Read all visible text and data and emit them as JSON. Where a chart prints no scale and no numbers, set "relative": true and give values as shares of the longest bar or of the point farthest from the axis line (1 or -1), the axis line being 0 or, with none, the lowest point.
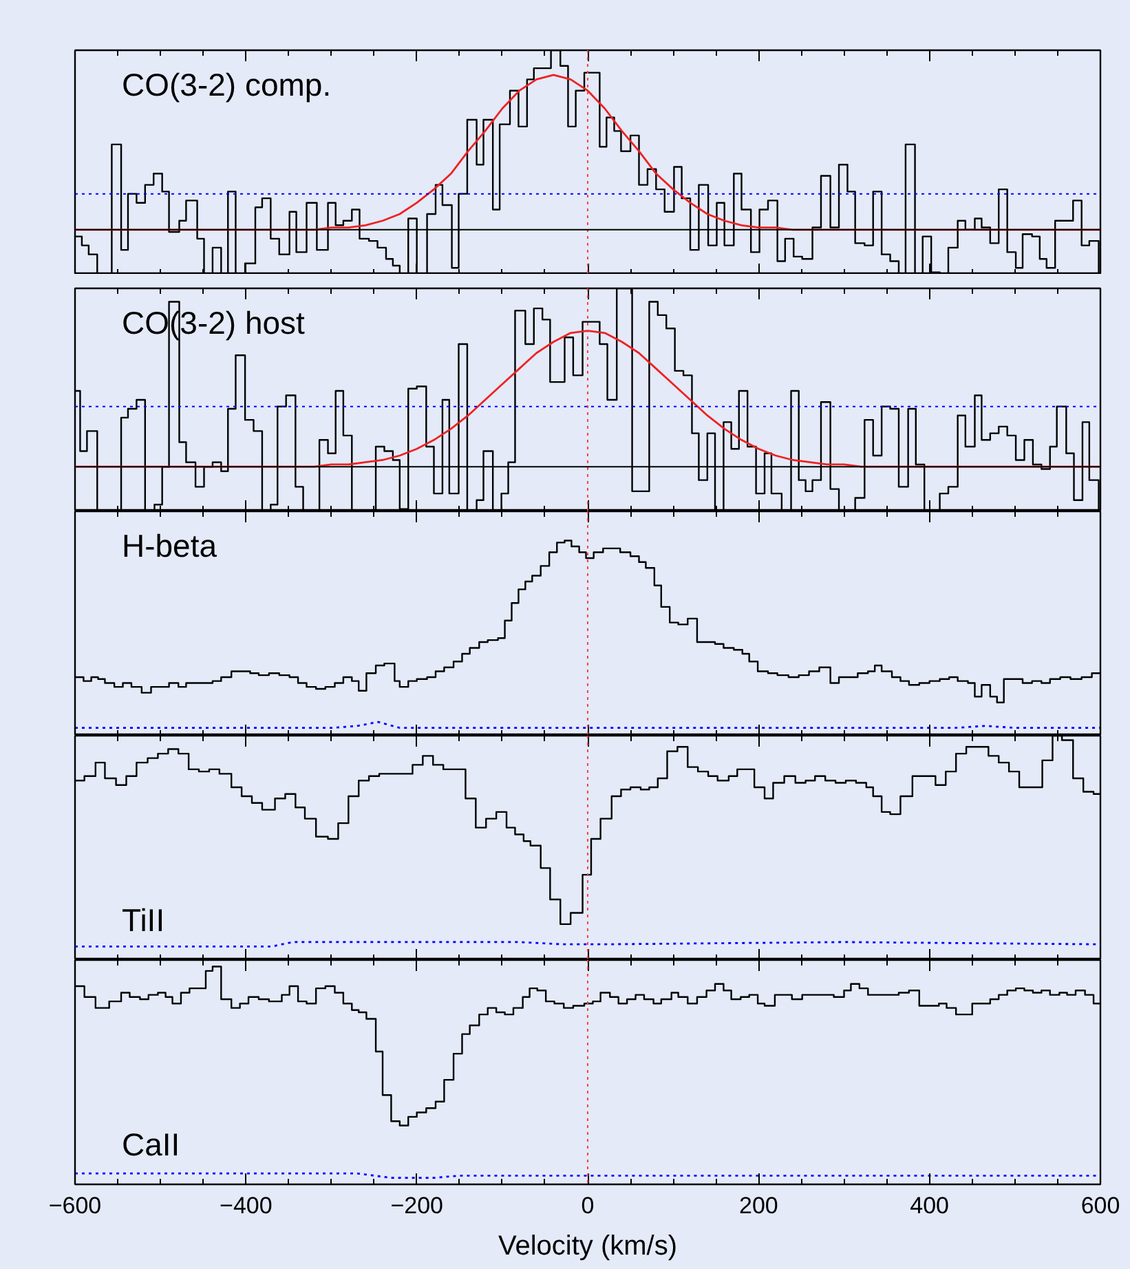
{
  "chart_data": [
    {
      "type": "step",
      "title": "CO(3-2) comp.",
      "relative": true,
      "xlim": [
        -600,
        600
      ],
      "xticks": [
        -600,
        {
          "value": -550,
          "label": null
        },
        {
          "value": -500,
          "label": null
        },
        {
          "value": -450,
          "label": null
        },
        -400,
        {
          "value": -350,
          "label": null
        },
        {
          "value": -300,
          "label": null
        },
        {
          "value": -250,
          "label": null
        },
        -200,
        {
          "value": -150,
          "label": null
        },
        {
          "value": -100,
          "label": null
        },
        {
          "value": -50,
          "label": null
        },
        0,
        {
          "value": 50,
          "label": null
        },
        {
          "value": 100,
          "label": null
        },
        {
          "value": 150,
          "label": null
        },
        200,
        {
          "value": 250,
          "label": null
        },
        {
          "value": 300,
          "label": null
        },
        {
          "value": 350,
          "label": null
        },
        400,
        {
          "value": 450,
          "label": null
        },
        {
          "value": 500,
          "label": null
        },
        {
          "value": 550,
          "label": null
        },
        600
      ],
      "tick_labels": false,
      "series": [
        {
          "color": "#000000",
          "x": [
            -600,
            -592,
            -584,
            -574,
            -557,
            -546,
            -538,
            -528,
            -518,
            -508,
            -498,
            -490,
            -478,
            -470,
            -457,
            -449,
            -439,
            -429,
            -421,
            -412,
            -401,
            -389,
            -381,
            -371,
            -361,
            -349,
            -341,
            -329,
            -317,
            -304,
            -295,
            -286,
            -276,
            -267,
            -256,
            -246,
            -236,
            -228,
            -220,
            -210,
            -200,
            -188,
            -178,
            -170,
            -159,
            -151,
            -141,
            -130,
            -122,
            -111,
            -103,
            -91,
            -81,
            -71,
            -63,
            -53,
            -43,
            -32,
            -23,
            -14,
            -4,
            14,
            22,
            31,
            39,
            50,
            60,
            70,
            80,
            90,
            101,
            110,
            120,
            130,
            141,
            151,
            160,
            171,
            180,
            191,
            201,
            211,
            222,
            231,
            241,
            251,
            263,
            273,
            284,
            294,
            304,
            313,
            324,
            334,
            344,
            354,
            364,
            372,
            383,
            392,
            402,
            412,
            422,
            433,
            442,
            453,
            461,
            471,
            481,
            491,
            501,
            509,
            520,
            529,
            537,
            547,
            557,
            568,
            578,
            587,
            598,
            600
          ],
          "values": [
            0.17,
            0.13,
            0.09,
            0,
            0.58,
            0.11,
            0.36,
            0.32,
            0.4,
            0.45,
            0.37,
            0.19,
            0.24,
            0.33,
            0.16,
            0,
            0.12,
            0,
            0.37,
            0,
            0.05,
            0.3,
            0.34,
            0.16,
            0.09,
            0.28,
            0.1,
            0.32,
            0.11,
            0.32,
            0.22,
            0.24,
            0.29,
            0.16,
            0.15,
            0.12,
            0.07,
            0.04,
            0,
            0.25,
            0,
            0.27,
            0.4,
            0.31,
            0.03,
            0.36,
            0.69,
            0.49,
            0.69,
            0.29,
            0.67,
            0.82,
            0.66,
            0.87,
            0.92,
            0.92,
            1.0,
            0.93,
            0.66,
            0.82,
            0.9,
            0.57,
            0.7,
            0.64,
            0.55,
            0.62,
            0.4,
            0.47,
            0.38,
            0.28,
            0.48,
            0.34,
            0.11,
            0.4,
            0.13,
            0.32,
            0.13,
            0.45,
            0.29,
            0.1,
            0.29,
            0.33,
            0.06,
            0.16,
            0.08,
            0.07,
            0.21,
            0.44,
            0.21,
            0.49,
            0.37,
            0.14,
            0.13,
            0.37,
            0.09,
            0.06,
            0,
            0.58,
            0,
            0.17,
            0.01,
            0,
            0.12,
            0.24,
            0.2,
            0.25,
            0.21,
            0.14,
            0.38,
            0.1,
            0.03,
            0.18,
            0.17,
            0.07,
            0.03,
            0.24,
            0.24,
            0.33,
            0.13,
            0.15,
            0,
            0
          ]
        },
        {
          "type": "line",
          "color": "#ee2222",
          "x": [
            -600,
            -320,
            -300,
            -280,
            -260,
            -240,
            -220,
            -200,
            -180,
            -160,
            -140,
            -120,
            -100,
            -80,
            -60,
            -40,
            -20,
            0,
            20,
            40,
            60,
            80,
            100,
            120,
            140,
            160,
            180,
            200,
            220,
            240,
            600
          ],
          "values": [
            0.2,
            0.2,
            0.21,
            0.21,
            0.22,
            0.24,
            0.27,
            0.32,
            0.38,
            0.45,
            0.55,
            0.64,
            0.74,
            0.82,
            0.87,
            0.89,
            0.87,
            0.82,
            0.74,
            0.64,
            0.55,
            0.45,
            0.38,
            0.32,
            0.27,
            0.24,
            0.22,
            0.21,
            0.21,
            0.2,
            0.2
          ]
        }
      ],
      "ref_lines": [
        {
          "axis": "x",
          "value": 0,
          "color": "#ff4040",
          "line_style": "dotted"
        },
        {
          "axis": "y",
          "value": 0.2,
          "color": "#000000",
          "line_style": "solid"
        },
        {
          "axis": "y",
          "value": 0.36,
          "color": "#0000ff",
          "line_style": "dotted"
        }
      ]
    },
    {
      "type": "step",
      "title": "CO(3-2) host",
      "relative": true,
      "xlim": [
        -600,
        600
      ],
      "xticks": [
        -600,
        {
          "value": -550,
          "label": null
        },
        {
          "value": -500,
          "label": null
        },
        {
          "value": -450,
          "label": null
        },
        -400,
        {
          "value": -350,
          "label": null
        },
        {
          "value": -300,
          "label": null
        },
        {
          "value": -250,
          "label": null
        },
        -200,
        {
          "value": -150,
          "label": null
        },
        {
          "value": -100,
          "label": null
        },
        {
          "value": -50,
          "label": null
        },
        0,
        {
          "value": 50,
          "label": null
        },
        {
          "value": 100,
          "label": null
        },
        {
          "value": 150,
          "label": null
        },
        200,
        {
          "value": 250,
          "label": null
        },
        {
          "value": 300,
          "label": null
        },
        {
          "value": 350,
          "label": null
        },
        400,
        {
          "value": 450,
          "label": null
        },
        {
          "value": 500,
          "label": null
        },
        {
          "value": 550,
          "label": null
        },
        600
      ],
      "tick_labels": false,
      "series": [
        {
          "color": "#000000",
          "x": [
            -600,
            -594,
            -586,
            -574,
            -546,
            -538,
            -528,
            -518,
            -507,
            -498,
            -490,
            -478,
            -470,
            -459,
            -449,
            -439,
            -429,
            -421,
            -412,
            -401,
            -391,
            -381,
            -371,
            -363,
            -353,
            -342,
            -333,
            -314,
            -304,
            -295,
            -286,
            -276,
            -248,
            -238,
            -228,
            -220,
            -210,
            -200,
            -189,
            -180,
            -170,
            -162,
            -151,
            -141,
            -130,
            -122,
            -111,
            -101,
            -93,
            -85,
            -73,
            -63,
            -53,
            -44,
            -27,
            -17,
            -6,
            14,
            23,
            34,
            52,
            62,
            72,
            82,
            92,
            102,
            112,
            122,
            130,
            140,
            149,
            159,
            168,
            177,
            187,
            197,
            207,
            215,
            227,
            238,
            247,
            255,
            263,
            273,
            284,
            294,
            313,
            324,
            334,
            344,
            354,
            364,
            375,
            384,
            394,
            412,
            422,
            433,
            442,
            453,
            461,
            471,
            481,
            491,
            501,
            511,
            521,
            531,
            541,
            549,
            560,
            569,
            579,
            587,
            598,
            600
          ],
          "values": [
            0.54,
            0.27,
            0.36,
            0,
            0.42,
            0.46,
            0.5,
            0,
            0.03,
            0.2,
            0.94,
            0.31,
            0.22,
            0.11,
            0.2,
            0.22,
            0.18,
            0.46,
            0.7,
            0.41,
            0.36,
            0,
            0.03,
            0.47,
            0.52,
            0.11,
            0,
            0.32,
            0.26,
            0.54,
            0.34,
            0,
            0.29,
            0.27,
            0.23,
            0.01,
            0.55,
            0.56,
            0.29,
            0.08,
            0.5,
            0.08,
            0.75,
            0,
            0.05,
            0.27,
            0,
            0.08,
            0.22,
            0.9,
            0.75,
            0.91,
            0.86,
            0.58,
            0.78,
            0.61,
            0.85,
            0.75,
            0.5,
            1.0,
            0.09,
            0.09,
            0.94,
            0.88,
            0.82,
            0.63,
            0.61,
            0.35,
            0.14,
            0.35,
            0,
            0.4,
            0.28,
            0.54,
            0.29,
            0.08,
            0.26,
            0.08,
            0,
            0.54,
            0.14,
            0.09,
            0.14,
            0.49,
            0.1,
            0,
            0.06,
            0.41,
            0.25,
            0.47,
            0.46,
            0.11,
            0.46,
            0.21,
            0,
            0.08,
            0.11,
            0.43,
            0.29,
            0.52,
            0.32,
            0.35,
            0.38,
            0.34,
            0.23,
            0.32,
            0.21,
            0.19,
            0.29,
            0.47,
            0.26,
            0.05,
            0.4,
            0.14,
            0,
            0
          ]
        },
        {
          "type": "line",
          "color": "#ee2222",
          "x": [
            -600,
            -320,
            -300,
            -280,
            -260,
            -240,
            -220,
            -200,
            -180,
            -160,
            -140,
            -120,
            -100,
            -80,
            -60,
            -40,
            -20,
            0,
            20,
            40,
            60,
            80,
            100,
            120,
            140,
            160,
            180,
            200,
            220,
            240,
            260,
            280,
            300,
            320,
            600
          ],
          "values": [
            0.2,
            0.2,
            0.21,
            0.21,
            0.22,
            0.23,
            0.25,
            0.28,
            0.32,
            0.37,
            0.43,
            0.5,
            0.57,
            0.64,
            0.71,
            0.76,
            0.8,
            0.81,
            0.8,
            0.76,
            0.71,
            0.64,
            0.57,
            0.5,
            0.43,
            0.37,
            0.32,
            0.28,
            0.25,
            0.23,
            0.22,
            0.21,
            0.21,
            0.2,
            0.2
          ]
        }
      ],
      "ref_lines": [
        {
          "axis": "x",
          "value": 0,
          "color": "#ff4040",
          "line_style": "dotted"
        },
        {
          "axis": "y",
          "value": 0.2,
          "color": "#000000",
          "line_style": "solid"
        },
        {
          "axis": "y",
          "value": 0.47,
          "color": "#0000ff",
          "line_style": "dotted"
        }
      ]
    },
    {
      "type": "step",
      "title": "H-beta",
      "relative": true,
      "xlim": [
        -600,
        600
      ],
      "xticks": [
        -600,
        {
          "value": -550,
          "label": null
        },
        {
          "value": -500,
          "label": null
        },
        {
          "value": -450,
          "label": null
        },
        -400,
        {
          "value": -350,
          "label": null
        },
        {
          "value": -300,
          "label": null
        },
        {
          "value": -250,
          "label": null
        },
        -200,
        {
          "value": -150,
          "label": null
        },
        {
          "value": -100,
          "label": null
        },
        {
          "value": -50,
          "label": null
        },
        0,
        {
          "value": 50,
          "label": null
        },
        {
          "value": 100,
          "label": null
        },
        {
          "value": 150,
          "label": null
        },
        200,
        {
          "value": 250,
          "label": null
        },
        {
          "value": 300,
          "label": null
        },
        {
          "value": 350,
          "label": null
        },
        400,
        {
          "value": 450,
          "label": null
        },
        {
          "value": 500,
          "label": null
        },
        {
          "value": 550,
          "label": null
        },
        600
      ],
      "tick_labels": false,
      "series": [
        {
          "color": "#000000",
          "x": [
            -600,
            -590,
            -581,
            -573,
            -565,
            -554,
            -544,
            -534,
            -522,
            -511,
            -502,
            -490,
            -479,
            -470,
            -460,
            -449,
            -439,
            -429,
            -417,
            -407,
            -395,
            -385,
            -373,
            -361,
            -349,
            -339,
            -329,
            -318,
            -307,
            -296,
            -286,
            -276,
            -268,
            -259,
            -248,
            -238,
            -226,
            -220,
            -210,
            -200,
            -188,
            -178,
            -168,
            -157,
            -147,
            -138,
            -127,
            -117,
            -105,
            -97,
            -89,
            -81,
            -73,
            -65,
            -55,
            -45,
            -36,
            -27,
            -19,
            -10,
            -2,
            7,
            18,
            28,
            38,
            50,
            60,
            68,
            78,
            86,
            96,
            106,
            117,
            128,
            139,
            149,
            159,
            171,
            181,
            189,
            199,
            211,
            222,
            235,
            247,
            259,
            271,
            284,
            294,
            304,
            316,
            328,
            336,
            344,
            356,
            366,
            376,
            388,
            400,
            412,
            423,
            433,
            445,
            453,
            461,
            471,
            479,
            487,
            497,
            509,
            520,
            531,
            541,
            553,
            565,
            578,
            590,
            600
          ],
          "values": [
            0.3,
            0.28,
            0.3,
            0.29,
            0.27,
            0.25,
            0.27,
            0.25,
            0.22,
            0.25,
            0.25,
            0.27,
            0.25,
            0.27,
            0.27,
            0.27,
            0.28,
            0.3,
            0.33,
            0.33,
            0.32,
            0.31,
            0.32,
            0.31,
            0.3,
            0.27,
            0.25,
            0.24,
            0.25,
            0.27,
            0.3,
            0.28,
            0.23,
            0.32,
            0.36,
            0.37,
            0.28,
            0.25,
            0.28,
            0.29,
            0.3,
            0.33,
            0.35,
            0.38,
            0.42,
            0.45,
            0.48,
            0.49,
            0.5,
            0.59,
            0.68,
            0.75,
            0.79,
            0.82,
            0.87,
            0.94,
            0.99,
            1.0,
            0.97,
            0.94,
            0.91,
            0.94,
            0.96,
            0.96,
            0.94,
            0.92,
            0.89,
            0.86,
            0.77,
            0.66,
            0.58,
            0.57,
            0.6,
            0.48,
            0.48,
            0.47,
            0.45,
            0.44,
            0.42,
            0.38,
            0.33,
            0.32,
            0.31,
            0.3,
            0.31,
            0.33,
            0.35,
            0.27,
            0.3,
            0.3,
            0.32,
            0.33,
            0.36,
            0.33,
            0.3,
            0.28,
            0.26,
            0.27,
            0.28,
            0.29,
            0.3,
            0.28,
            0.27,
            0.2,
            0.26,
            0.2,
            0.17,
            0.29,
            0.29,
            0.27,
            0.28,
            0.27,
            0.29,
            0.3,
            0.29,
            0.3,
            0.32,
            0.32
          ]
        },
        {
          "type": "line",
          "color": "#0000ff",
          "line_style": "dotted",
          "x": [
            -600,
            -300,
            -270,
            -245,
            -220,
            430,
            465,
            500,
            600
          ],
          "values": [
            0.04,
            0.04,
            0.05,
            0.07,
            0.04,
            0.04,
            0.05,
            0.04,
            0.04
          ]
        }
      ],
      "ref_lines": [
        {
          "axis": "x",
          "value": 0,
          "color": "#ff4040",
          "line_style": "dotted"
        }
      ]
    },
    {
      "type": "step",
      "title": "TiII",
      "relative": true,
      "xlim": [
        -600,
        600
      ],
      "xticks": [
        -600,
        {
          "value": -550,
          "label": null
        },
        {
          "value": -500,
          "label": null
        },
        {
          "value": -450,
          "label": null
        },
        -400,
        {
          "value": -350,
          "label": null
        },
        {
          "value": -300,
          "label": null
        },
        {
          "value": -250,
          "label": null
        },
        -200,
        {
          "value": -150,
          "label": null
        },
        {
          "value": -100,
          "label": null
        },
        {
          "value": -50,
          "label": null
        },
        0,
        {
          "value": 50,
          "label": null
        },
        {
          "value": 100,
          "label": null
        },
        {
          "value": 150,
          "label": null
        },
        200,
        {
          "value": 250,
          "label": null
        },
        {
          "value": 300,
          "label": null
        },
        {
          "value": 350,
          "label": null
        },
        400,
        {
          "value": 450,
          "label": null
        },
        {
          "value": 500,
          "label": null
        },
        {
          "value": 550,
          "label": null
        },
        600
      ],
      "tick_labels": false,
      "series": [
        {
          "color": "#000000",
          "x": [
            -600,
            -589,
            -576,
            -565,
            -552,
            -540,
            -528,
            -515,
            -503,
            -491,
            -479,
            -467,
            -455,
            -443,
            -431,
            -417,
            -405,
            -393,
            -381,
            -366,
            -354,
            -342,
            -331,
            -318,
            -304,
            -292,
            -280,
            -268,
            -256,
            -244,
            -232,
            -220,
            -205,
            -193,
            -181,
            -169,
            -157,
            -143,
            -131,
            -119,
            -107,
            -95,
            -85,
            -75,
            -67,
            -55,
            -44,
            -32,
            -20,
            -6,
            4,
            15,
            28,
            39,
            50,
            62,
            72,
            82,
            93,
            105,
            117,
            129,
            141,
            152,
            165,
            175,
            185,
            195,
            207,
            217,
            230,
            243,
            255,
            266,
            278,
            290,
            302,
            314,
            326,
            334,
            344,
            354,
            366,
            380,
            392,
            407,
            419,
            431,
            443,
            455,
            469,
            481,
            493,
            505,
            519,
            532,
            544,
            555,
            568,
            580,
            592,
            600
          ],
          "values": [
            0.8,
            0.82,
            0.88,
            0.81,
            0.78,
            0.82,
            0.88,
            0.9,
            0.92,
            0.94,
            0.92,
            0.85,
            0.84,
            0.85,
            0.83,
            0.77,
            0.73,
            0.7,
            0.67,
            0.72,
            0.74,
            0.68,
            0.63,
            0.55,
            0.54,
            0.61,
            0.73,
            0.8,
            0.82,
            0.83,
            0.83,
            0.83,
            0.87,
            0.91,
            0.87,
            0.85,
            0.85,
            0.72,
            0.59,
            0.63,
            0.66,
            0.59,
            0.56,
            0.53,
            0.51,
            0.41,
            0.27,
            0.16,
            0.21,
            0.38,
            0.54,
            0.63,
            0.73,
            0.76,
            0.77,
            0.76,
            0.77,
            0.81,
            0.93,
            0.95,
            0.86,
            0.84,
            0.82,
            0.8,
            0.82,
            0.85,
            0.85,
            0.77,
            0.72,
            0.79,
            0.82,
            0.79,
            0.8,
            0.82,
            0.8,
            0.79,
            0.8,
            0.79,
            0.77,
            0.73,
            0.66,
            0.65,
            0.73,
            0.82,
            0.82,
            0.78,
            0.84,
            0.92,
            0.95,
            0.95,
            0.91,
            0.88,
            0.84,
            0.77,
            0.77,
            0.89,
            1.0,
            0.98,
            0.81,
            0.75,
            0.74,
            0.74
          ]
        },
        {
          "type": "line",
          "color": "#0000ff",
          "line_style": "dotted",
          "x": [
            -600,
            -370,
            -345,
            -80,
            -30,
            20,
            300,
            600
          ],
          "values": [
            0.06,
            0.06,
            0.08,
            0.08,
            0.07,
            0.07,
            0.08,
            0.07
          ]
        }
      ],
      "ref_lines": [
        {
          "axis": "x",
          "value": 0,
          "color": "#ff4040",
          "line_style": "dotted"
        }
      ]
    },
    {
      "type": "step",
      "title": "CaII",
      "xlabel": "Velocity (km/s)",
      "relative": true,
      "xlim": [
        -600,
        600
      ],
      "xticks": [
        -600,
        {
          "value": -550,
          "label": null
        },
        {
          "value": -500,
          "label": null
        },
        {
          "value": -450,
          "label": null
        },
        -400,
        {
          "value": -350,
          "label": null
        },
        {
          "value": -300,
          "label": null
        },
        {
          "value": -250,
          "label": null
        },
        -200,
        {
          "value": -150,
          "label": null
        },
        {
          "value": -100,
          "label": null
        },
        {
          "value": -50,
          "label": null
        },
        0,
        {
          "value": 50,
          "label": null
        },
        {
          "value": 100,
          "label": null
        },
        {
          "value": 150,
          "label": null
        },
        200,
        {
          "value": 250,
          "label": null
        },
        {
          "value": 300,
          "label": null
        },
        {
          "value": 350,
          "label": null
        },
        400,
        {
          "value": 450,
          "label": null
        },
        {
          "value": 500,
          "label": null
        },
        {
          "value": 550,
          "label": null
        },
        600
      ],
      "tick_labels": "x",
      "series": [
        {
          "color": "#000000",
          "x": [
            -600,
            -589,
            -576,
            -560,
            -546,
            -536,
            -524,
            -514,
            -503,
            -494,
            -486,
            -476,
            -466,
            -455,
            -447,
            -439,
            -429,
            -417,
            -407,
            -397,
            -385,
            -373,
            -358,
            -349,
            -339,
            -329,
            -318,
            -307,
            -296,
            -286,
            -276,
            -268,
            -259,
            -248,
            -240,
            -230,
            -220,
            -210,
            -200,
            -189,
            -178,
            -168,
            -157,
            -147,
            -138,
            -127,
            -117,
            -107,
            -97,
            -87,
            -76,
            -68,
            -59,
            -49,
            -39,
            -28,
            -17,
            -4,
            6,
            15,
            26,
            36,
            46,
            56,
            66,
            77,
            86,
            98,
            106,
            117,
            128,
            139,
            149,
            159,
            168,
            179,
            189,
            199,
            207,
            219,
            230,
            239,
            251,
            263,
            275,
            288,
            300,
            308,
            318,
            328,
            340,
            352,
            364,
            376,
            388,
            400,
            411,
            420,
            431,
            441,
            450,
            461,
            471,
            481,
            491,
            501,
            511,
            521,
            531,
            541,
            552,
            561,
            571,
            582,
            592,
            600
          ],
          "values": [
            0.91,
            0.86,
            0.81,
            0.84,
            0.88,
            0.86,
            0.85,
            0.87,
            0.88,
            0.86,
            0.83,
            0.88,
            0.9,
            0.9,
            0.98,
            1.0,
            0.85,
            0.81,
            0.83,
            0.86,
            0.85,
            0.84,
            0.87,
            0.91,
            0.84,
            0.83,
            0.9,
            0.91,
            0.88,
            0.83,
            0.8,
            0.79,
            0.76,
            0.61,
            0.41,
            0.29,
            0.27,
            0.31,
            0.33,
            0.35,
            0.38,
            0.48,
            0.6,
            0.69,
            0.73,
            0.78,
            0.81,
            0.79,
            0.78,
            0.81,
            0.86,
            0.9,
            0.89,
            0.84,
            0.83,
            0.81,
            0.82,
            0.83,
            0.84,
            0.88,
            0.86,
            0.83,
            0.85,
            0.87,
            0.85,
            0.83,
            0.85,
            0.88,
            0.86,
            0.83,
            0.86,
            0.89,
            0.92,
            0.89,
            0.85,
            0.86,
            0.87,
            0.83,
            0.82,
            0.87,
            0.87,
            0.85,
            0.87,
            0.87,
            0.87,
            0.86,
            0.89,
            0.92,
            0.9,
            0.87,
            0.87,
            0.87,
            0.88,
            0.89,
            0.82,
            0.82,
            0.83,
            0.81,
            0.78,
            0.78,
            0.83,
            0.83,
            0.85,
            0.87,
            0.89,
            0.9,
            0.89,
            0.88,
            0.89,
            0.87,
            0.88,
            0.87,
            0.89,
            0.87,
            0.83,
            0.83
          ]
        },
        {
          "type": "line",
          "color": "#0000ff",
          "line_style": "dotted",
          "x": [
            -600,
            -270,
            -230,
            -180,
            -150,
            600
          ],
          "values": [
            0.05,
            0.05,
            0.03,
            0.03,
            0.04,
            0.04
          ]
        }
      ],
      "ref_lines": [
        {
          "axis": "x",
          "value": 0,
          "color": "#ff4040",
          "line_style": "dotted"
        }
      ]
    }
  ]
}
